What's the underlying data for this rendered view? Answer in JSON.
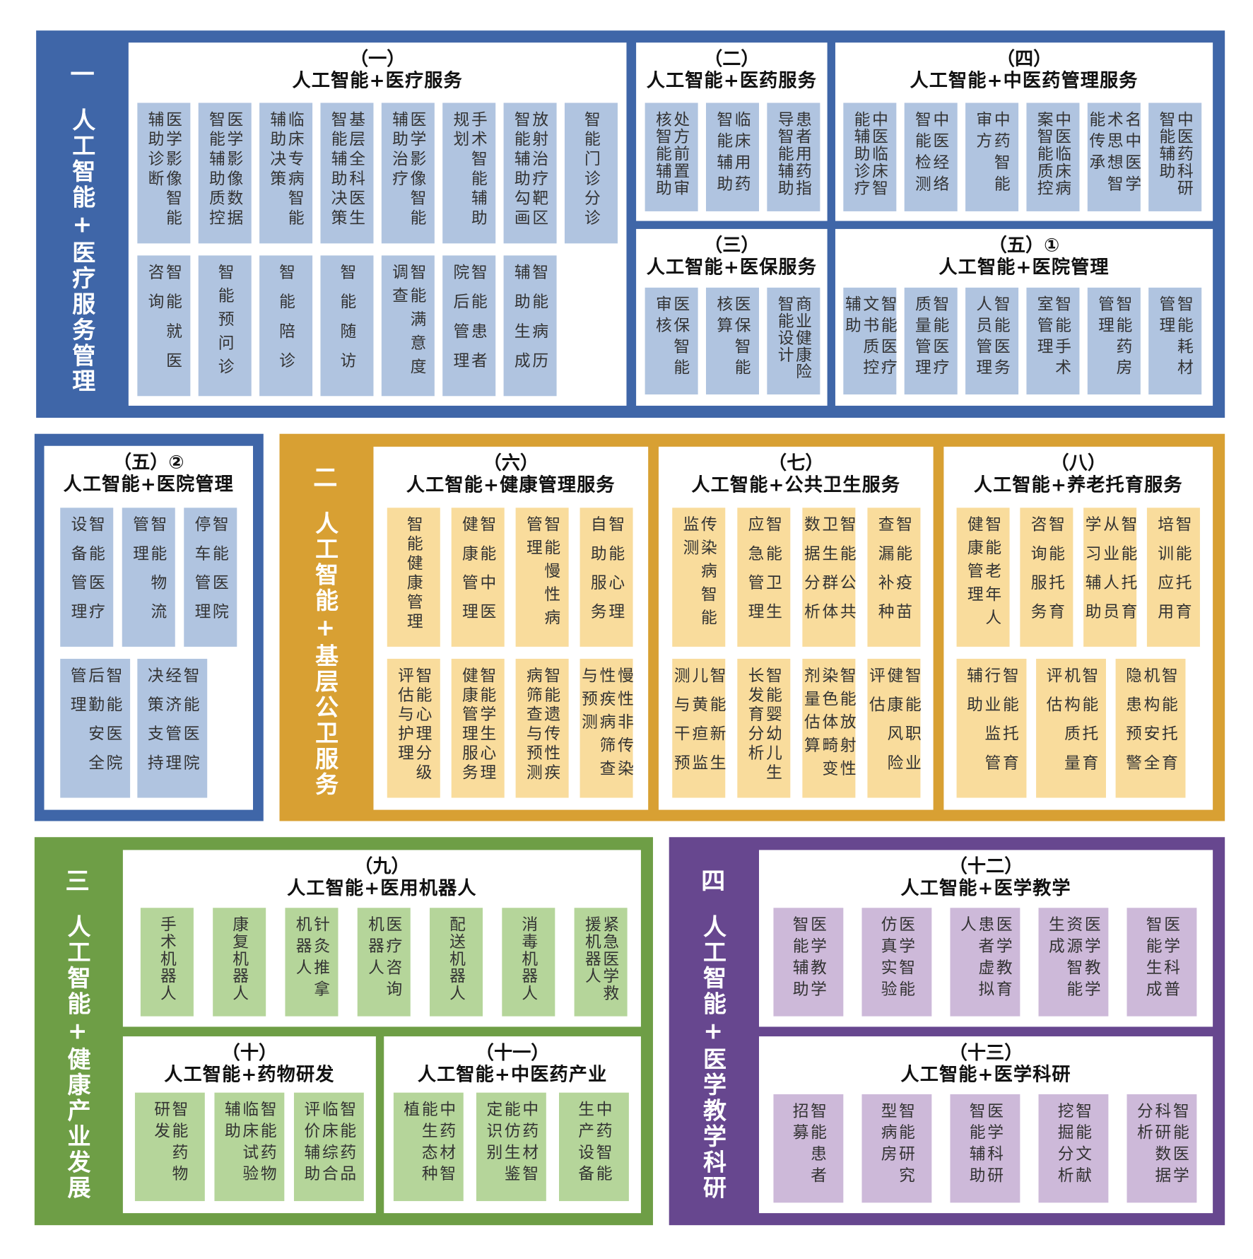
{
  "sections": [
    {
      "number": "一",
      "title": "人工智能+医疗服务管理",
      "color": "#3F66A8",
      "cell_color": "#B0C4E0",
      "groups": [
        {
          "number": "（一）",
          "title": "人工智能+医疗服务",
          "rows": [
            [
              "医学影像智能\n辅助诊断",
              "医学影像数据\n智能辅助质控",
              "临床专病智能\n辅助决策",
              "基层全科医生\n智能辅助决策",
              "医学影像智能\n辅助治疗",
              "手术智能辅助\n规划",
              "放射治疗靶区\n智能辅助勾画",
              "智能门诊分诊"
            ],
            [
              "智能就医\n咨询",
              "智能预问诊",
              "智能陪诊",
              "智能随访",
              "智能满意度\n调查",
              "智能患者\n院后管理",
              "智能病历\n辅助生成"
            ]
          ]
        },
        {
          "number": "（二）",
          "title": "人工智能+医药服务",
          "rows": [
            [
              "处方前置审\n核智能辅助",
              "临床用药\n智能辅助",
              "患者用药指\n导智能辅助"
            ]
          ]
        },
        {
          "number": "（三）",
          "title": "人工智能+医保服务",
          "rows": [
            [
              "医保智能\n审核",
              "医保智能\n核算",
              "商业健康险\n智能设计"
            ]
          ]
        },
        {
          "number": "（四）",
          "title": "人工智能+中医药管理服务",
          "rows": [
            [
              "中医临床智\n能辅助诊疗",
              "中医经络\n智能检测",
              "中药智能\n审方",
              "中医临床病\n案智能质控",
              "名中医学\n术思想智\n能传承",
              "中医药科研\n智能辅助"
            ]
          ]
        },
        {
          "number": "（五）①",
          "title": "人工智能+医院管理",
          "rows": [
            [
              "智能医疗\n文书质控\n辅助",
              "智能医疗\n质量管理",
              "智能医务\n人员管理",
              "智能手术\n室管理",
              "智能药房\n管理",
              "智能耗材\n管理"
            ]
          ]
        },
        {
          "number": "（五）②",
          "title": "人工智能+医院管理",
          "rows": [
            [
              "智能医疗\n设备管理",
              "智能物流\n管理",
              "智能医院\n停车管理"
            ],
            [
              "智能医院\n后勤安全\n管理",
              "智能医院\n经济管理\n决策支持"
            ]
          ]
        }
      ]
    },
    {
      "number": "二",
      "title": "人工智能+基层公卫服务",
      "color": "#D8A033",
      "cell_color": "#F9DC9C",
      "groups": [
        {
          "number": "（六）",
          "title": "人工智能+健康管理服务",
          "rows": [
            [
              "智能健康管理",
              "智能中医\n健康管理",
              "智能慢性病\n管理",
              "智能心理\n自助服务"
            ],
            [
              "智能心理分级\n评估与护理",
              "智能学生心理\n健康管理服务",
              "智能遗传性疾\n病筛查与预测",
              "慢性非传染\n性疾病筛查\n与预测"
            ]
          ]
        },
        {
          "number": "（七）",
          "title": "人工智能+公共卫生服务",
          "rows": [
            [
              "传染病智能\n监测",
              "智能卫生\n应急管理",
              "智能公共\n卫生群体\n数据分析",
              "智能疫苗\n查漏补种"
            ],
            [
              "智能新生\n儿黄疸监\n测与干预",
              "智能婴幼儿生\n长发育分析",
              "智能放射性\n染色体畸变\n剂量估算",
              "智能职业\n健康风险\n评估"
            ]
          ]
        },
        {
          "number": "（八）",
          "title": "人工智能+养老托育服务",
          "rows": [
            [
              "智能老年人\n健康管理",
              "智能托育\n咨询服务",
              "智能托育\n从业人员\n学习辅助",
              "智能托育\n培训应用"
            ],
            [
              "智能托育\n行业监管\n辅助",
              "智能托育\n机构质量\n评估",
              "智能托育\n机构安全\n隐患预警"
            ]
          ]
        }
      ]
    },
    {
      "number": "三",
      "title": "人工智能+健康产业发展",
      "color": "#6E9E46",
      "cell_color": "#B5D59A",
      "groups": [
        {
          "number": "（九）",
          "title": "人工智能+医用机器人",
          "rows": [
            [
              "手术机器人",
              "康复机器人",
              "针灸推拿\n机器人",
              "医疗咨询\n机器人",
              "配送机器人",
              "消毒机器人",
              "紧急医学救\n援机器人"
            ]
          ]
        },
        {
          "number": "（十）",
          "title": "人工智能+药物研发",
          "rows": [
            [
              "智能药物\n研发",
              "智能药物\n临床试验\n辅助",
              "智能药品\n临床综合\n评价辅助"
            ]
          ]
        },
        {
          "number": "（十一）",
          "title": "人工智能+中医药产业",
          "rows": [
            [
              "中药材智\n能生态种\n植",
              "中药材智\n能仿生鉴\n定识别",
              "中药智能\n生产设备"
            ]
          ]
        }
      ]
    },
    {
      "number": "四",
      "title": "人工智能+医学教学科研",
      "color": "#67478F",
      "cell_color": "#CDB9D9",
      "groups": [
        {
          "number": "（十二）",
          "title": "人工智能+医学教学",
          "rows": [
            [
              "医学教学\n智能辅助",
              "医学智能\n仿真实验",
              "医学教育\n患者虚拟\n人",
              "医学教学\n资源智能\n生成",
              "医学科普\n智能生成"
            ]
          ]
        },
        {
          "number": "（十三）",
          "title": "人工智能+医学科研",
          "rows": [
            [
              "智能患者\n招募",
              "智能研究\n型病房",
              "医学科研\n智能辅助",
              "智能文献\n挖掘分析",
              "智能医学\n科研数据\n分析"
            ]
          ]
        }
      ]
    }
  ]
}
